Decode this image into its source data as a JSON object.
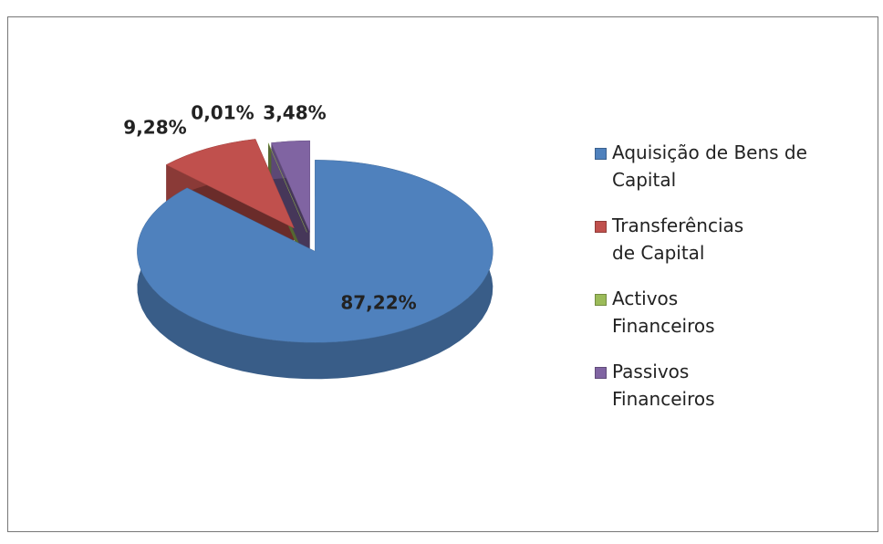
{
  "chart_data": {
    "type": "pie",
    "categories": [
      "Aquisição de Bens de Capital",
      "Transferências de Capital",
      "Activos Financeiros",
      "Passivos Financeiros"
    ],
    "values": [
      87.22,
      9.28,
      0.01,
      3.48
    ],
    "value_labels": [
      "87,22%",
      "9,28%",
      "0,01%",
      "3,48%"
    ],
    "colors": [
      "#4f81bd",
      "#c0504d",
      "#9bbb59",
      "#8064a2"
    ],
    "legend": "right"
  }
}
